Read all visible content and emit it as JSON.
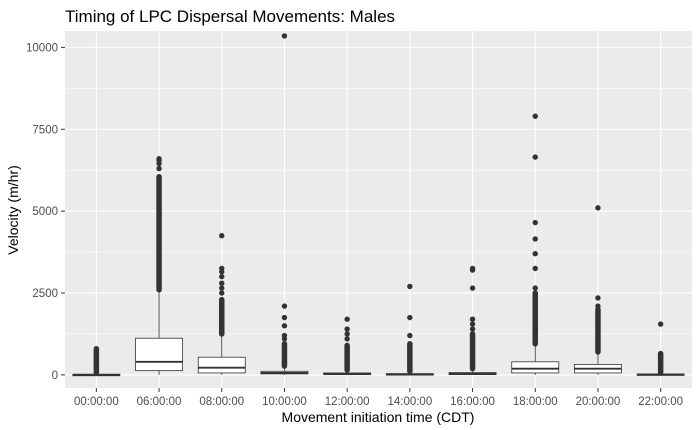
{
  "chart_data": {
    "type": "box",
    "title": "Timing of LPC Dispersal Movements: Males",
    "xlabel": "Movement initiation time (CDT)",
    "ylabel": "Velocity (m/hr)",
    "ylim": [
      -400,
      10500
    ],
    "yticks": [
      0,
      2500,
      5000,
      7500,
      10000
    ],
    "grid": true,
    "legend": "none",
    "colors": {
      "panel": "#ebebeb",
      "grid_major": "#ffffff",
      "box_fill": "#ffffff",
      "box_stroke": "#333333",
      "outlier": "#333333",
      "tick_text": "#4d4d4d"
    },
    "categories": [
      "00:00:00",
      "06:00:00",
      "08:00:00",
      "10:00:00",
      "12:00:00",
      "14:00:00",
      "16:00:00",
      "18:00:00",
      "20:00:00",
      "22:00:00"
    ],
    "boxes": [
      {
        "q1": 0,
        "median": 5,
        "q3": 20,
        "whisker_low": 0,
        "whisker_high": 40,
        "outliers_range": [
          60,
          800
        ],
        "outliers": []
      },
      {
        "q1": 130,
        "median": 400,
        "q3": 1120,
        "whisker_low": 0,
        "whisker_high": 2550,
        "outliers_range": [
          2600,
          6050
        ],
        "outliers": [
          6300,
          6450,
          6550,
          6600
        ]
      },
      {
        "q1": 60,
        "median": 220,
        "q3": 540,
        "whisker_low": 0,
        "whisker_high": 1200,
        "outliers_range": [
          1250,
          2300
        ],
        "outliers": [
          2500,
          2650,
          2800,
          3000,
          3150,
          3250,
          4250
        ]
      },
      {
        "q1": 30,
        "median": 60,
        "q3": 110,
        "whisker_low": 0,
        "whisker_high": 250,
        "outliers_range": [
          270,
          950
        ],
        "outliers": [
          1100,
          1200,
          1500,
          1750,
          2100,
          10350
        ]
      },
      {
        "q1": 10,
        "median": 30,
        "q3": 60,
        "whisker_low": 0,
        "whisker_high": 130,
        "outliers_range": [
          150,
          900
        ],
        "outliers": [
          1100,
          1250,
          1400,
          1700
        ]
      },
      {
        "q1": 5,
        "median": 15,
        "q3": 40,
        "whisker_low": 0,
        "whisker_high": 90,
        "outliers_range": [
          110,
          950
        ],
        "outliers": [
          1200,
          1750,
          2700
        ]
      },
      {
        "q1": 10,
        "median": 30,
        "q3": 75,
        "whisker_low": 0,
        "whisker_high": 170,
        "outliers_range": [
          190,
          1250
        ],
        "outliers": [
          1400,
          1550,
          1700,
          2650,
          3200,
          3250
        ]
      },
      {
        "q1": 60,
        "median": 190,
        "q3": 400,
        "whisker_low": 0,
        "whisker_high": 900,
        "outliers_range": [
          950,
          2500
        ],
        "outliers": [
          2650,
          3250,
          3700,
          4150,
          4650,
          6650,
          7900
        ]
      },
      {
        "q1": 60,
        "median": 190,
        "q3": 320,
        "whisker_low": 0,
        "whisker_high": 650,
        "outliers_range": [
          700,
          2000
        ],
        "outliers": [
          2100,
          2350,
          5100
        ]
      },
      {
        "q1": 0,
        "median": 8,
        "q3": 30,
        "whisker_low": 0,
        "whisker_high": 60,
        "outliers_range": [
          80,
          650
        ],
        "outliers": [
          1550
        ]
      }
    ]
  }
}
